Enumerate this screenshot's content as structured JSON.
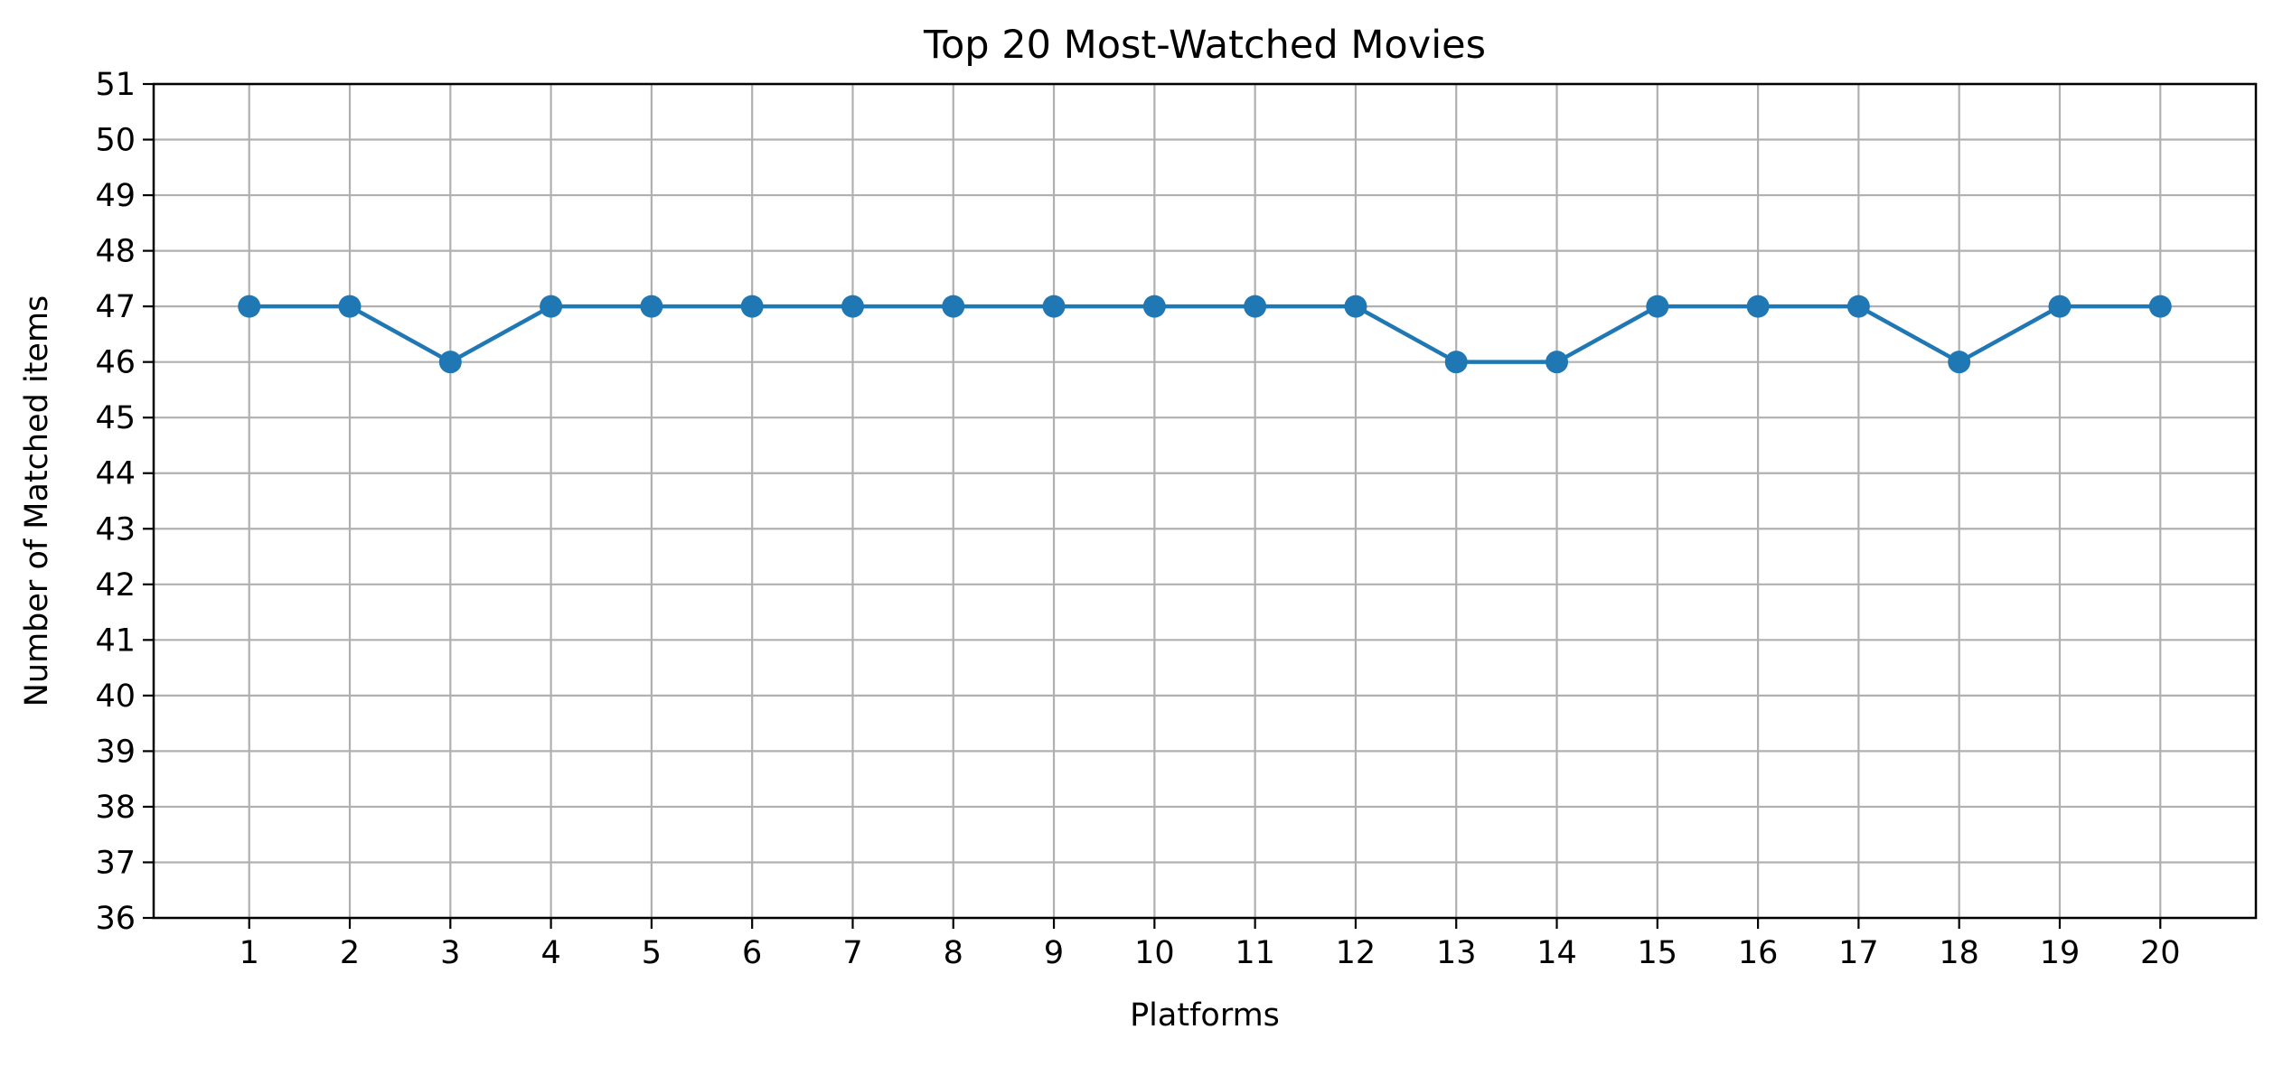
{
  "chart_data": {
    "type": "line",
    "title": "Top 20 Most-Watched Movies",
    "xlabel": "Platforms",
    "ylabel": "Number of Matched items",
    "x": [
      1,
      2,
      3,
      4,
      5,
      6,
      7,
      8,
      9,
      10,
      11,
      12,
      13,
      14,
      15,
      16,
      17,
      18,
      19,
      20
    ],
    "series": [
      {
        "values": [
          47,
          47,
          46,
          47,
          47,
          47,
          47,
          47,
          47,
          47,
          47,
          47,
          46,
          46,
          47,
          47,
          47,
          46,
          47,
          47
        ],
        "color": "#1f77b4",
        "marker": "circle"
      }
    ],
    "xticks": [
      1,
      2,
      3,
      4,
      5,
      6,
      7,
      8,
      9,
      10,
      11,
      12,
      13,
      14,
      15,
      16,
      17,
      18,
      19,
      20
    ],
    "yticks": [
      36,
      37,
      38,
      39,
      40,
      41,
      42,
      43,
      44,
      45,
      46,
      47,
      48,
      49,
      50,
      51
    ],
    "xlim": [
      0.05,
      20.95
    ],
    "ylim": [
      36,
      51
    ],
    "grid": true,
    "grid_color": "#b0b0b0",
    "legend": false
  }
}
